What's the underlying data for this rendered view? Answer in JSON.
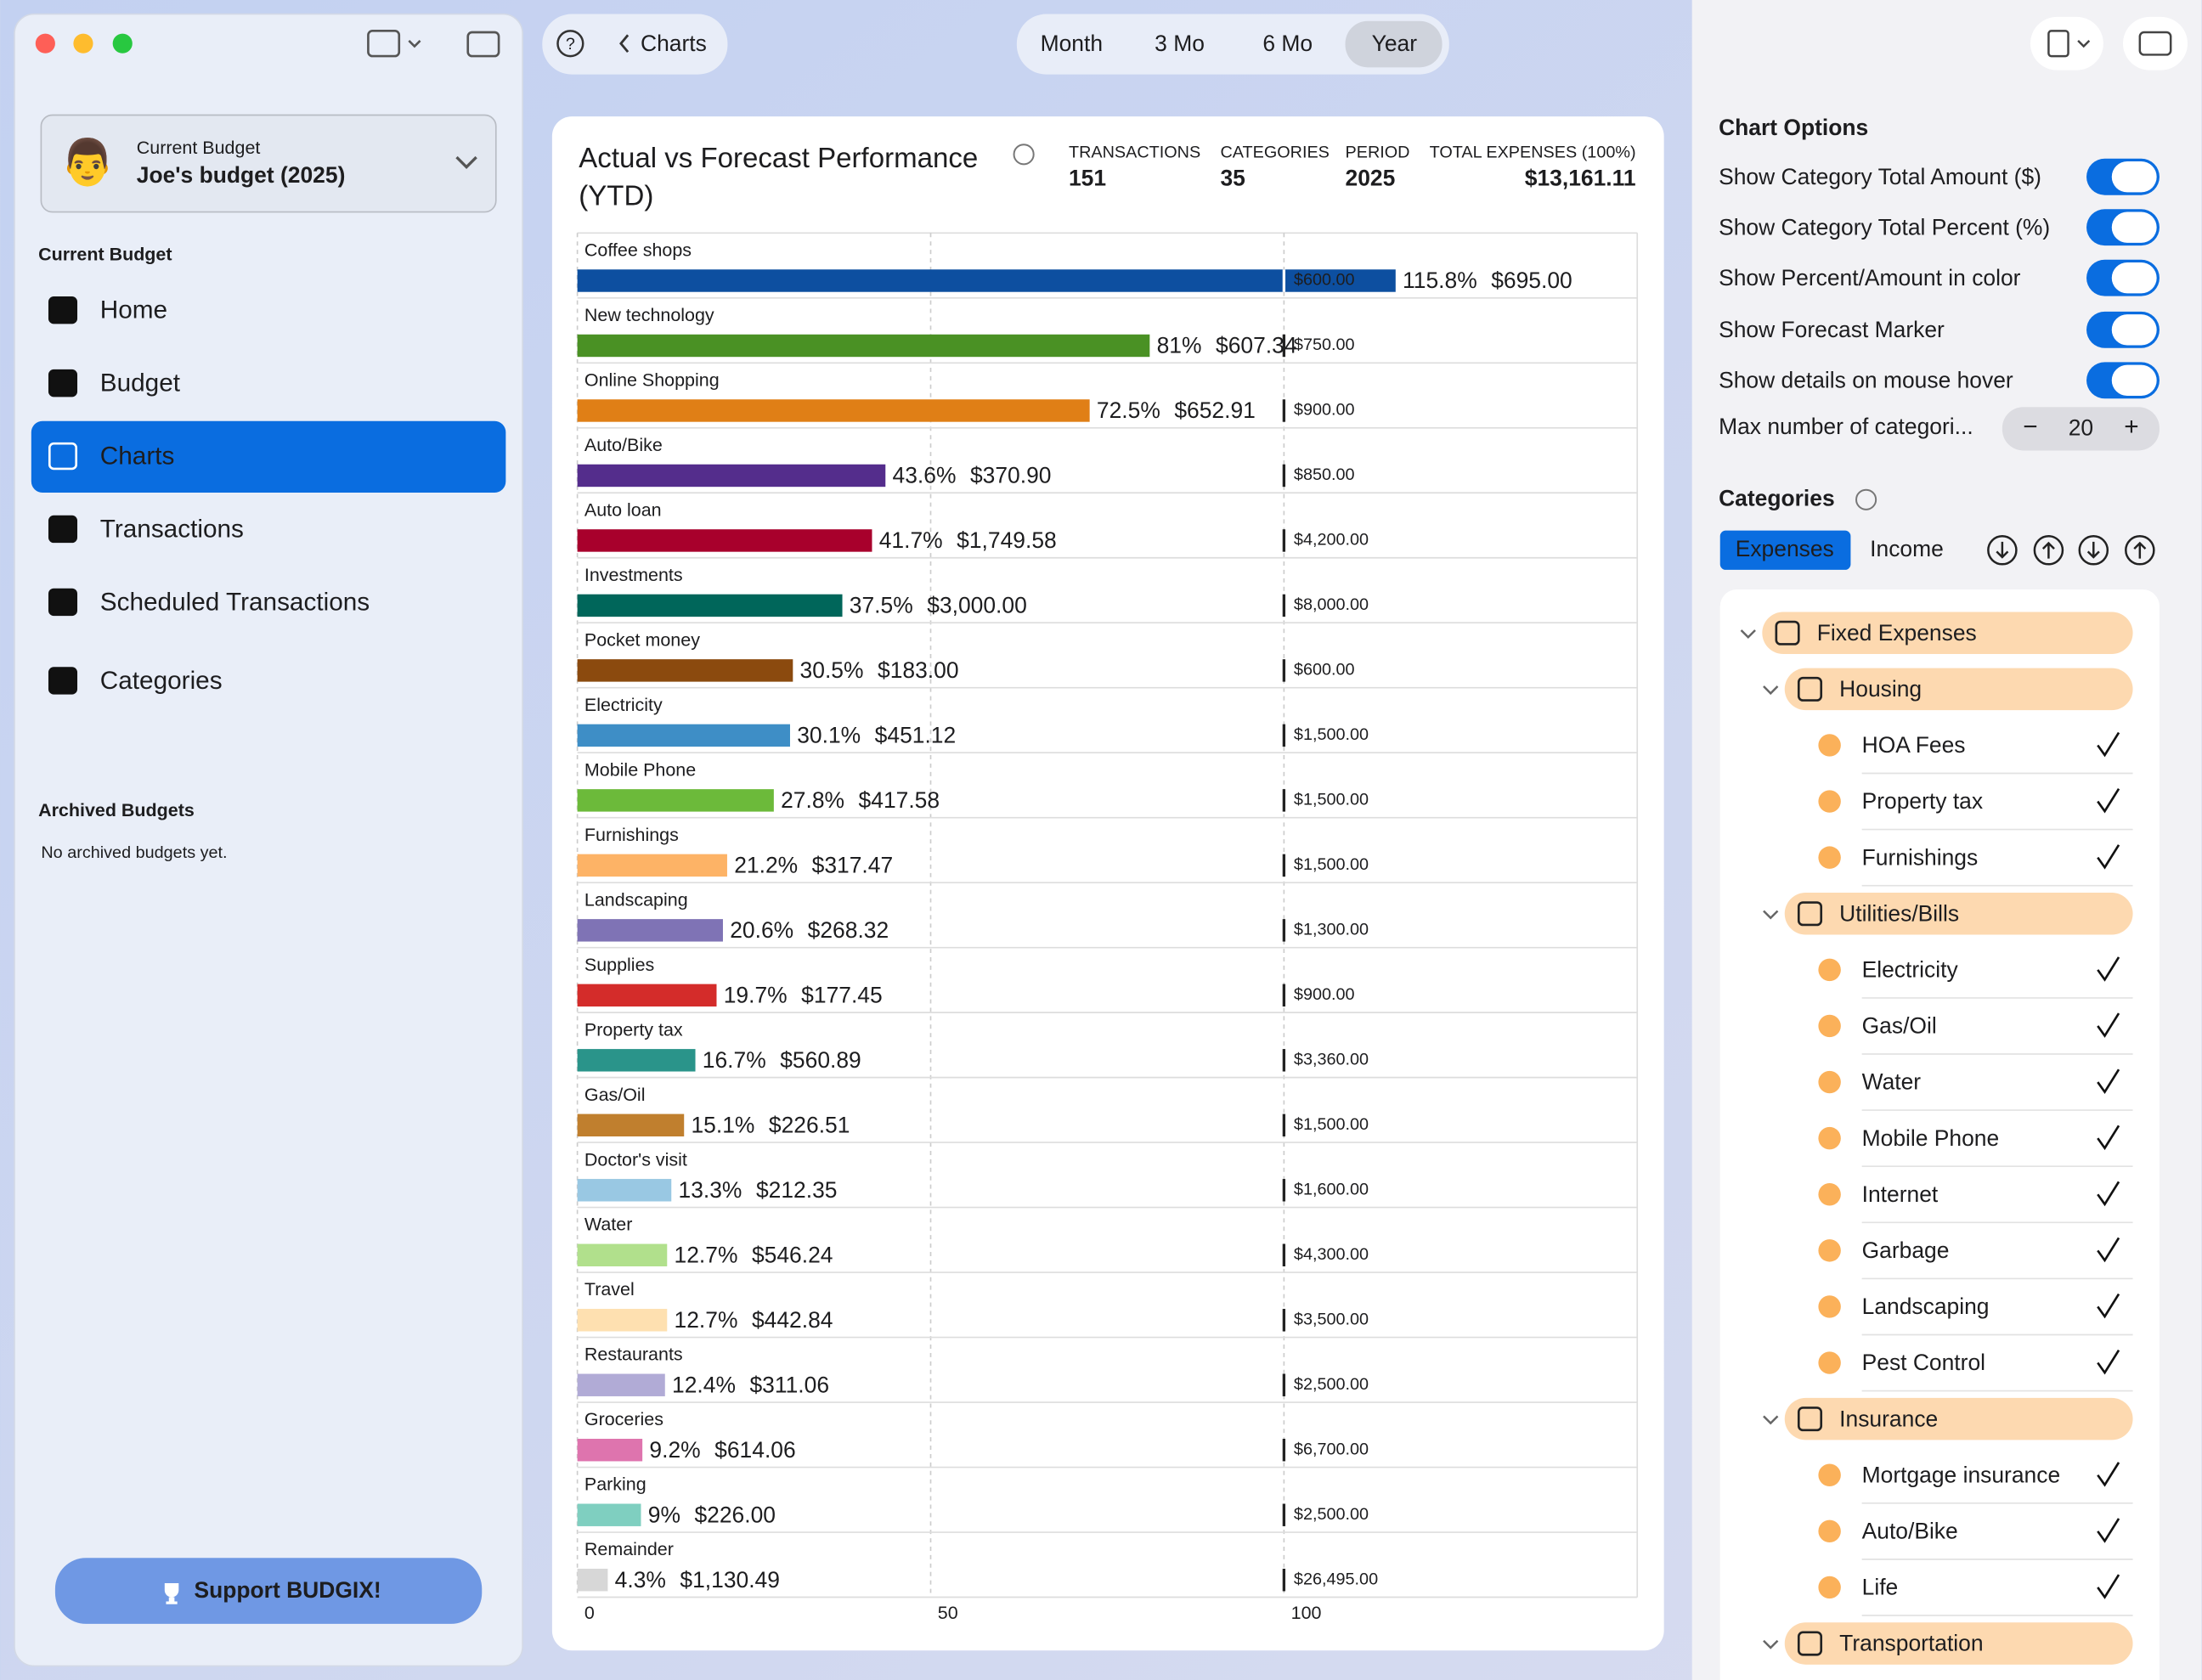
{
  "sidebar": {
    "budget_caption": "Current Budget",
    "budget_name": "Joe's budget (2025)",
    "section": "Current Budget",
    "nav": [
      "Home",
      "Budget",
      "Charts",
      "Transactions",
      "Scheduled Transactions",
      "Categories"
    ],
    "archived_title": "Archived Budgets",
    "archived_note": "No archived budgets yet.",
    "support": "Support BUDGIX!"
  },
  "toolbar": {
    "back": "Charts",
    "periods": [
      "Month",
      "3 Mo",
      "6 Mo",
      "Year"
    ]
  },
  "chart_data": {
    "type": "bar",
    "orientation": "horizontal",
    "title": "Actual vs Forecast Performance",
    "subtitle": "(YTD)",
    "stats": [
      {
        "label": "TRANSACTIONS",
        "value": "151"
      },
      {
        "label": "CATEGORIES",
        "value": "35"
      },
      {
        "label": "PERIOD",
        "value": "2025"
      },
      {
        "label": "TOTAL EXPENSES (100%)",
        "value": "$13,161.11"
      }
    ],
    "categories": [
      "Coffee shops",
      "New technology",
      "Online Shopping",
      "Auto/Bike",
      "Auto loan",
      "Investments",
      "Pocket money",
      "Electricity",
      "Mobile Phone",
      "Furnishings",
      "Landscaping",
      "Supplies",
      "Property tax",
      "Gas/Oil",
      "Doctor's visit",
      "Water",
      "Travel",
      "Restaurants",
      "Groceries",
      "Parking",
      "Remainder"
    ],
    "values": [
      115.8,
      81,
      72.5,
      43.6,
      41.7,
      37.5,
      30.5,
      30.1,
      27.8,
      21.2,
      20.6,
      19.7,
      16.7,
      15.1,
      13.3,
      12.7,
      12.7,
      12.4,
      9.2,
      9,
      4.3
    ],
    "value_labels": [
      "115.8%",
      "81%",
      "72.5%",
      "43.6%",
      "41.7%",
      "37.5%",
      "30.5%",
      "30.1%",
      "27.8%",
      "21.2%",
      "20.6%",
      "19.7%",
      "16.7%",
      "15.1%",
      "13.3%",
      "12.7%",
      "12.7%",
      "12.4%",
      "9.2%",
      "9%",
      "4.3%"
    ],
    "actual_labels": [
      "$695.00",
      "$607.34",
      "$652.91",
      "$370.90",
      "$1,749.58",
      "$3,000.00",
      "$183.00",
      "$451.12",
      "$417.58",
      "$317.47",
      "$268.32",
      "$177.45",
      "$560.89",
      "$226.51",
      "$212.35",
      "$546.24",
      "$442.84",
      "$311.06",
      "$614.06",
      "$226.00",
      "$1,130.49"
    ],
    "forecast_labels": [
      "$600.00",
      "$750.00",
      "$900.00",
      "$850.00",
      "$4,200.00",
      "$8,000.00",
      "$600.00",
      "$1,500.00",
      "$1,500.00",
      "$1,500.00",
      "$1,300.00",
      "$900.00",
      "$3,360.00",
      "$1,500.00",
      "$1,600.00",
      "$4,300.00",
      "$3,500.00",
      "$2,500.00",
      "$6,700.00",
      "$2,500.00",
      "$26,495.00"
    ],
    "colors": [
      "#0d4fa0",
      "#4a9124",
      "#e07f16",
      "#542d8c",
      "#a8002c",
      "#00665a",
      "#8b4a0e",
      "#3e8ec6",
      "#6cba3a",
      "#fdb366",
      "#7f73b5",
      "#d42c2a",
      "#2a948a",
      "#c07f2e",
      "#99c8e3",
      "#b1e08c",
      "#fee0b0",
      "#b1abd6",
      "#de74ae",
      "#7fcfc0",
      "#d7d7d7"
    ],
    "label_color": "#2fb84b",
    "over_color": "#e5322d",
    "xlim": [
      0,
      150
    ],
    "xticks": [
      0,
      50,
      100
    ],
    "grid": true
  },
  "options_panel": {
    "title": "Chart Options",
    "toggles": [
      {
        "label": "Show Category Total Amount ($)",
        "on": true
      },
      {
        "label": "Show Category Total Percent (%)",
        "on": true
      },
      {
        "label": "Show Percent/Amount in color",
        "on": true
      },
      {
        "label": "Show Forecast Marker",
        "on": true
      },
      {
        "label": "Show details on mouse hover",
        "on": true
      }
    ],
    "max_label": "Max number of categori...",
    "max_value": "20",
    "categories_title": "Categories",
    "tabs": [
      "Expenses",
      "Income"
    ],
    "tree": [
      {
        "label": "Fixed Expenses",
        "level": 0,
        "group": true
      },
      {
        "label": "Housing",
        "level": 1,
        "group": true
      },
      {
        "label": "HOA Fees",
        "level": 2,
        "group": false
      },
      {
        "label": "Property tax",
        "level": 2,
        "group": false
      },
      {
        "label": "Furnishings",
        "level": 2,
        "group": false
      },
      {
        "label": "Utilities/Bills",
        "level": 1,
        "group": true
      },
      {
        "label": "Electricity",
        "level": 2,
        "group": false
      },
      {
        "label": "Gas/Oil",
        "level": 2,
        "group": false
      },
      {
        "label": "Water",
        "level": 2,
        "group": false
      },
      {
        "label": "Mobile Phone",
        "level": 2,
        "group": false
      },
      {
        "label": "Internet",
        "level": 2,
        "group": false
      },
      {
        "label": "Garbage",
        "level": 2,
        "group": false
      },
      {
        "label": "Landscaping",
        "level": 2,
        "group": false
      },
      {
        "label": "Pest Control",
        "level": 2,
        "group": false
      },
      {
        "label": "Insurance",
        "level": 1,
        "group": true
      },
      {
        "label": "Mortgage insurance",
        "level": 2,
        "group": false
      },
      {
        "label": "Auto/Bike",
        "level": 2,
        "group": false
      },
      {
        "label": "Life",
        "level": 2,
        "group": false
      },
      {
        "label": "Transportation",
        "level": 1,
        "group": true
      }
    ]
  }
}
